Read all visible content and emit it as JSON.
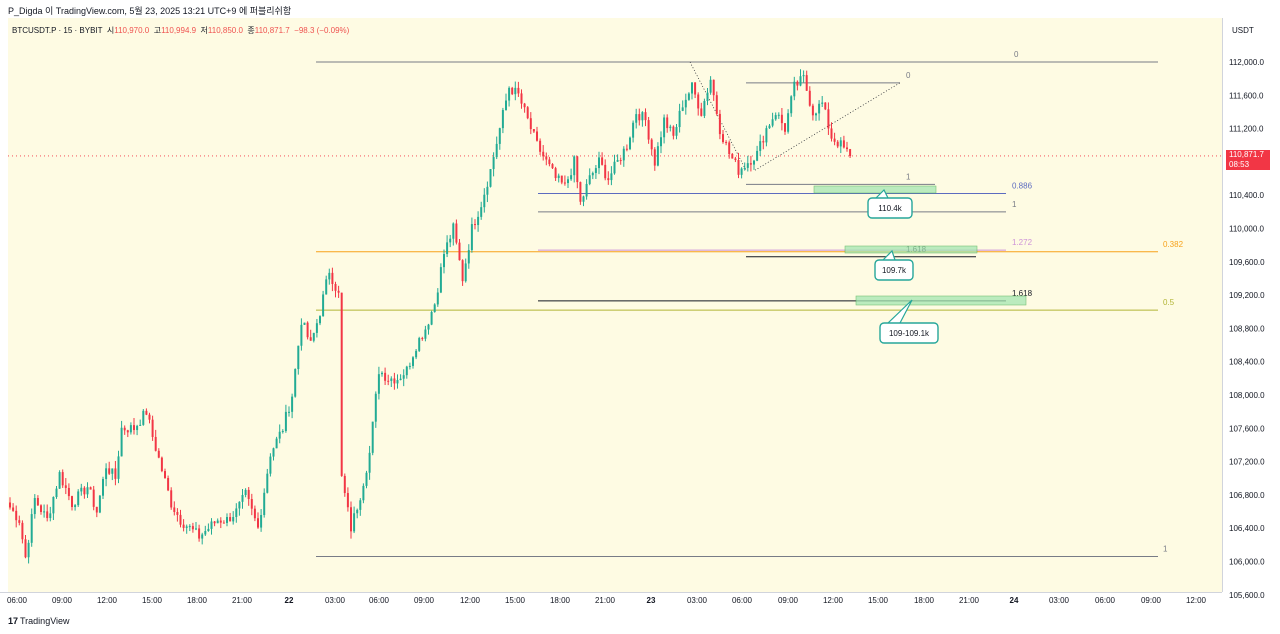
{
  "header": {
    "title": "P_Digda 이 TradingView.com, 5월 23, 2025 13:21 UTC+9 에 퍼블리쉬함"
  },
  "legend": {
    "symbol": "BTCUSDT.P · 15 · BYBIT",
    "open_label": "시",
    "open": "110,970.0",
    "high_label": "고",
    "high": "110,994.9",
    "low_label": "저",
    "low": "110,850.0",
    "close_label": "종",
    "close": "110,871.7",
    "change": "−98.3 (−0.09%)"
  },
  "axis": {
    "currency": "USDT",
    "price_labels": [
      "112,000.0",
      "111,600.0",
      "111,200.0",
      "110,400.0",
      "110,000.0",
      "109,600.0",
      "109,200.0",
      "108,800.0",
      "108,400.0",
      "108,000.0",
      "107,600.0",
      "107,200.0",
      "106,800.0",
      "106,400.0",
      "106,000.0",
      "105,600.0"
    ],
    "current_price": "110,871.7",
    "countdown": "08:53"
  },
  "footer": {
    "brand": "TradingView",
    "logo": "17"
  },
  "colors": {
    "up": "#22ab94",
    "down": "#f23645",
    "bg": "#fefbe3",
    "fib_gold": "#f7a21b",
    "fib_olive": "#b2b536",
    "zone": "#a5e6b2",
    "zone_border": "#4caf50"
  },
  "chart_data": {
    "type": "candlestick",
    "title": "BTCUSDT.P · 15 · BYBIT",
    "ylim": [
      105500,
      112450
    ],
    "x_ticks": [
      "06:00",
      "09:00",
      "12:00",
      "15:00",
      "18:00",
      "21:00",
      "22",
      "03:00",
      "06:00",
      "09:00",
      "12:00",
      "15:00",
      "18:00",
      "21:00",
      "23",
      "03:00",
      "06:00",
      "09:00",
      "12:00",
      "15:00",
      "18:00",
      "21:00",
      "24",
      "03:00",
      "06:00",
      "09:00",
      "12:00"
    ],
    "anchors": [
      [
        0,
        106650
      ],
      [
        3,
        106500
      ],
      [
        5,
        106050
      ],
      [
        8,
        106750
      ],
      [
        12,
        106500
      ],
      [
        16,
        107050
      ],
      [
        20,
        106700
      ],
      [
        25,
        106900
      ],
      [
        28,
        106600
      ],
      [
        31,
        107150
      ],
      [
        34,
        107000
      ],
      [
        36,
        107600
      ],
      [
        40,
        107600
      ],
      [
        42,
        107700
      ],
      [
        44,
        107800
      ],
      [
        46,
        107500
      ],
      [
        49,
        107100
      ],
      [
        52,
        106700
      ],
      [
        55,
        106500
      ],
      [
        58,
        106400
      ],
      [
        61,
        106300
      ],
      [
        64,
        106400
      ],
      [
        67,
        106500
      ],
      [
        70,
        106500
      ],
      [
        73,
        106600
      ],
      [
        76,
        106800
      ],
      [
        80,
        106400
      ],
      [
        84,
        107300
      ],
      [
        88,
        107600
      ],
      [
        91,
        108000
      ],
      [
        94,
        108900
      ],
      [
        97,
        108600
      ],
      [
        100,
        109000
      ],
      [
        103,
        109500
      ],
      [
        106,
        109200
      ],
      [
        107,
        107000
      ],
      [
        110,
        106400
      ],
      [
        113,
        106800
      ],
      [
        116,
        107300
      ],
      [
        119,
        108300
      ],
      [
        122,
        108200
      ],
      [
        125,
        108200
      ],
      [
        128,
        108300
      ],
      [
        131,
        108600
      ],
      [
        134,
        108800
      ],
      [
        137,
        109100
      ],
      [
        140,
        109700
      ],
      [
        143,
        110000
      ],
      [
        146,
        109400
      ],
      [
        149,
        110000
      ],
      [
        152,
        110300
      ],
      [
        155,
        110700
      ],
      [
        158,
        111200
      ],
      [
        161,
        111700
      ],
      [
        164,
        111600
      ],
      [
        167,
        111300
      ],
      [
        170,
        111000
      ],
      [
        173,
        110800
      ],
      [
        176,
        110600
      ],
      [
        179,
        110500
      ],
      [
        182,
        110800
      ],
      [
        184,
        110300
      ],
      [
        187,
        110600
      ],
      [
        190,
        110800
      ],
      [
        193,
        110600
      ],
      [
        196,
        110800
      ],
      [
        199,
        111000
      ],
      [
        202,
        111400
      ],
      [
        205,
        111300
      ],
      [
        208,
        110800
      ],
      [
        211,
        111300
      ],
      [
        214,
        111100
      ],
      [
        217,
        111500
      ],
      [
        220,
        111700
      ],
      [
        223,
        111400
      ],
      [
        226,
        111800
      ],
      [
        229,
        111200
      ],
      [
        232,
        110900
      ],
      [
        235,
        110700
      ],
      [
        238,
        110800
      ],
      [
        241,
        110900
      ],
      [
        244,
        111200
      ],
      [
        247,
        111400
      ],
      [
        250,
        111200
      ],
      [
        253,
        111700
      ],
      [
        256,
        111800
      ],
      [
        259,
        111400
      ],
      [
        262,
        111500
      ],
      [
        265,
        111100
      ],
      [
        268,
        111000
      ],
      [
        271,
        110870
      ]
    ],
    "fib_levels": [
      {
        "label": "0",
        "price": 112000
      },
      {
        "label": "0",
        "price": 111750
      },
      {
        "label": "1",
        "price": 110530
      },
      {
        "label": "0.886",
        "price": 110420
      },
      {
        "label": "1",
        "price": 110200
      },
      {
        "label": "1.272",
        "price": 109740
      },
      {
        "label": "0.382",
        "price": 109720
      },
      {
        "label": "1.618",
        "price": 109660
      },
      {
        "label": "1.618",
        "price": 109130
      },
      {
        "label": "0.5",
        "price": 109020
      },
      {
        "label": "1",
        "price": 106060
      }
    ],
    "target_zones": [
      "110.4k",
      "109.7k",
      "109-109.1k"
    ]
  }
}
